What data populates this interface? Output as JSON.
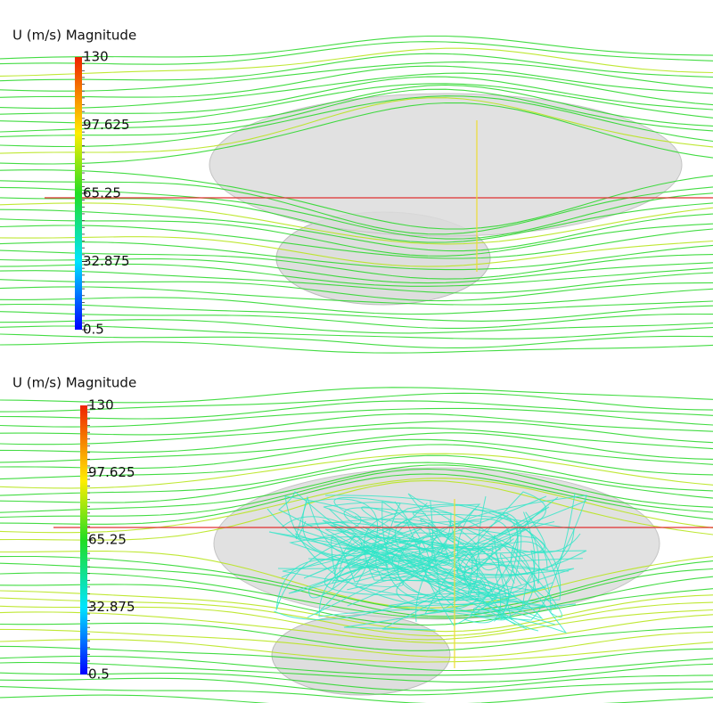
{
  "panels": [
    {
      "legend": {
        "title": "U (m/s) Magnitude",
        "range": [
          0.5,
          130
        ],
        "ticks": [
          130,
          97.625,
          65.25,
          32.875,
          0.5
        ]
      }
    },
    {
      "legend": {
        "title": "U (m/s) Magnitude",
        "range": [
          0.5,
          130
        ],
        "ticks": [
          130,
          97.625,
          65.25,
          32.875,
          0.5
        ]
      }
    }
  ]
}
